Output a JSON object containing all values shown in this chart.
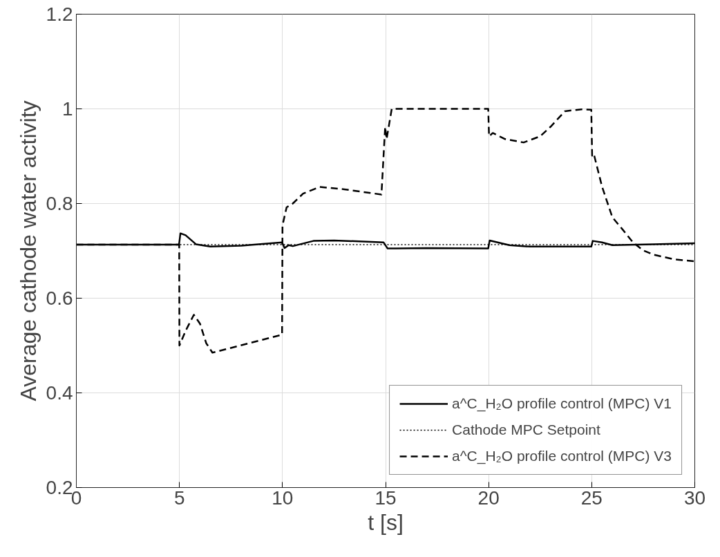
{
  "chart_data": {
    "type": "line",
    "xlabel": "t [s]",
    "ylabel": "Average cathode water activity",
    "xlim": [
      0,
      30
    ],
    "ylim": [
      0.2,
      1.2
    ],
    "xticks": [
      0,
      5,
      10,
      15,
      20,
      25,
      30
    ],
    "yticks": [
      0.2,
      0.4,
      0.6,
      0.8,
      1,
      1.2
    ],
    "grid": true,
    "legend": "bottom right",
    "series": [
      {
        "name": "a^C_H₂O profile control (MPC) V1",
        "color": "#000000",
        "line_style": "solid",
        "x": [
          0,
          4.98,
          5.05,
          5.3,
          5.8,
          6.5,
          8,
          9.98,
          10.1,
          10.3,
          10.5,
          11.5,
          12.5,
          14.9,
          15.1,
          15.5,
          17,
          19.98,
          20.05,
          21,
          22,
          24.98,
          25.05,
          25.5,
          26,
          28,
          30
        ],
        "values": [
          0.713,
          0.713,
          0.737,
          0.733,
          0.714,
          0.709,
          0.711,
          0.718,
          0.706,
          0.712,
          0.71,
          0.721,
          0.722,
          0.718,
          0.705,
          0.705,
          0.706,
          0.705,
          0.722,
          0.712,
          0.709,
          0.709,
          0.721,
          0.718,
          0.712,
          0.714,
          0.716
        ]
      },
      {
        "name": "Cathode MPC Setpoint",
        "color": "#000000",
        "line_style": "dotted",
        "x": [
          0,
          30
        ],
        "values": [
          0.713,
          0.713
        ]
      },
      {
        "name": "a^C_H₂O profile control (MPC) V3",
        "color": "#000000",
        "line_style": "dashed",
        "x": [
          0,
          4.99,
          5.0,
          5.3,
          5.7,
          6.0,
          6.3,
          6.6,
          7.5,
          9.98,
          10.0,
          10.2,
          10.5,
          11,
          11.8,
          13,
          14.8,
          14.98,
          15.05,
          15.3,
          19.98,
          20.02,
          20.2,
          20.8,
          21.7,
          22.5,
          23,
          23.7,
          24.5,
          24.98,
          25.02,
          25.1,
          25.5,
          26,
          26.5,
          27,
          27.5,
          28,
          29,
          30
        ],
        "values": [
          0.713,
          0.713,
          0.5,
          0.531,
          0.565,
          0.546,
          0.505,
          0.485,
          0.495,
          0.523,
          0.754,
          0.792,
          0.8,
          0.821,
          0.835,
          0.83,
          0.819,
          0.962,
          0.936,
          1.0,
          1.0,
          0.942,
          0.949,
          0.936,
          0.929,
          0.942,
          0.962,
          0.995,
          0.999,
          0.998,
          0.901,
          0.905,
          0.836,
          0.771,
          0.745,
          0.718,
          0.701,
          0.692,
          0.682,
          0.678
        ]
      }
    ]
  }
}
